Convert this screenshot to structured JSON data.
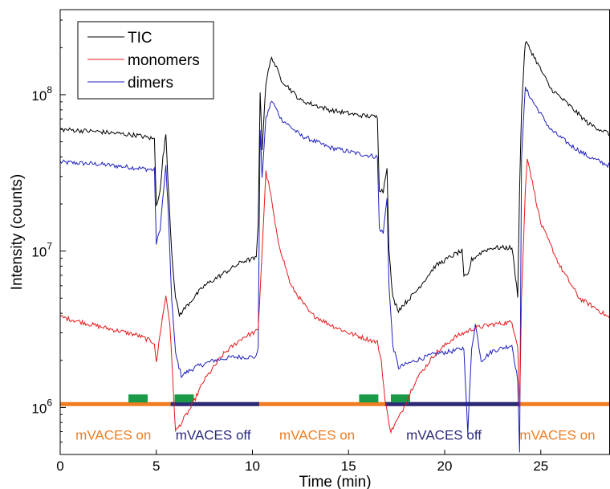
{
  "chart_data": {
    "type": "line",
    "title": "",
    "xlabel": "Time (min)",
    "ylabel": "Intensity (counts)",
    "xlim": [
      0,
      28.6
    ],
    "ylim": [
      500000,
      350000000
    ],
    "yscale": "log",
    "xticks": [
      0,
      5,
      10,
      15,
      20,
      25
    ],
    "xtick_labels": [
      "0",
      "5",
      "10",
      "15",
      "20",
      "25"
    ],
    "yticks": [
      1000000,
      10000000,
      100000000
    ],
    "ytick_labels": [
      {
        "base": "10",
        "exp": "6"
      },
      {
        "base": "10",
        "exp": "7"
      },
      {
        "base": "10",
        "exp": "8"
      }
    ],
    "grid": false,
    "legend_position": "top-left",
    "series": [
      {
        "name": "TIC",
        "color": "#000000",
        "points": [
          [
            0,
            60000000
          ],
          [
            2,
            58000000
          ],
          [
            4,
            55000000
          ],
          [
            4.9,
            52000000
          ],
          [
            5.0,
            20000000
          ],
          [
            5.2,
            24000000
          ],
          [
            5.35,
            40000000
          ],
          [
            5.5,
            56000000
          ],
          [
            5.6,
            30000000
          ],
          [
            5.8,
            10000000
          ],
          [
            6.0,
            5000000
          ],
          [
            6.2,
            3900000
          ],
          [
            6.8,
            4800000
          ],
          [
            7.5,
            6000000
          ],
          [
            8.5,
            7200000
          ],
          [
            9.5,
            8600000
          ],
          [
            10.2,
            9000000
          ],
          [
            10.3,
            15000000
          ],
          [
            10.4,
            105000000
          ],
          [
            10.5,
            45000000
          ],
          [
            10.7,
            120000000
          ],
          [
            11.0,
            175000000
          ],
          [
            11.5,
            125000000
          ],
          [
            12.5,
            92000000
          ],
          [
            14,
            80000000
          ],
          [
            15.5,
            74000000
          ],
          [
            16.5,
            72000000
          ],
          [
            16.6,
            25000000
          ],
          [
            16.8,
            24000000
          ],
          [
            17.0,
            35000000
          ],
          [
            17.1,
            10000000
          ],
          [
            17.3,
            5000000
          ],
          [
            17.6,
            4200000
          ],
          [
            18.5,
            5500000
          ],
          [
            19.5,
            8000000
          ],
          [
            20.5,
            9500000
          ],
          [
            20.9,
            10000000
          ],
          [
            21.0,
            6800000
          ],
          [
            21.2,
            7000000
          ],
          [
            21.4,
            8800000
          ],
          [
            22,
            10000000
          ],
          [
            22.5,
            10500000
          ],
          [
            23.5,
            10500000
          ],
          [
            23.8,
            5200000
          ],
          [
            23.9,
            25000000
          ],
          [
            24.0,
            80000000
          ],
          [
            24.1,
            140000000
          ],
          [
            24.2,
            220000000
          ],
          [
            24.6,
            180000000
          ],
          [
            25.5,
            110000000
          ],
          [
            26.5,
            85000000
          ],
          [
            27.5,
            65000000
          ],
          [
            28.6,
            56000000
          ]
        ]
      },
      {
        "name": "monomers",
        "color": "#e41a1c",
        "points": [
          [
            0,
            3800000
          ],
          [
            2,
            3300000
          ],
          [
            4,
            2900000
          ],
          [
            4.9,
            2600000
          ],
          [
            5.0,
            1900000
          ],
          [
            5.2,
            3000000
          ],
          [
            5.5,
            5200000
          ],
          [
            5.7,
            3500000
          ],
          [
            5.9,
            1200000
          ],
          [
            6.0,
            700000
          ],
          [
            6.2,
            760000
          ],
          [
            6.8,
            1000000
          ],
          [
            7.5,
            1500000
          ],
          [
            8.5,
            2200000
          ],
          [
            9.5,
            2800000
          ],
          [
            10.3,
            3100000
          ],
          [
            10.5,
            10000000
          ],
          [
            10.7,
            32000000
          ],
          [
            10.9,
            25000000
          ],
          [
            11.3,
            12000000
          ],
          [
            12,
            6000000
          ],
          [
            13,
            4000000
          ],
          [
            14,
            3400000
          ],
          [
            15,
            3000000
          ],
          [
            16.5,
            2600000
          ],
          [
            16.7,
            2000000
          ],
          [
            16.9,
            1100000
          ],
          [
            17.2,
            700000
          ],
          [
            17.7,
            900000
          ],
          [
            18.5,
            1500000
          ],
          [
            19.5,
            2200000
          ],
          [
            20.5,
            2800000
          ],
          [
            21.5,
            3200000
          ],
          [
            22.5,
            3400000
          ],
          [
            23.5,
            3500000
          ],
          [
            23.8,
            2500000
          ],
          [
            23.9,
            1000000
          ],
          [
            24.0,
            5000000
          ],
          [
            24.2,
            25000000
          ],
          [
            24.3,
            40000000
          ],
          [
            24.5,
            30000000
          ],
          [
            25,
            15000000
          ],
          [
            26,
            8000000
          ],
          [
            27,
            5000000
          ],
          [
            28,
            4200000
          ],
          [
            28.6,
            3700000
          ]
        ]
      },
      {
        "name": "dimers",
        "color": "#1f1fbf",
        "points": [
          [
            0,
            37000000
          ],
          [
            2,
            36000000
          ],
          [
            4,
            34000000
          ],
          [
            4.9,
            33000000
          ],
          [
            5.0,
            11000000
          ],
          [
            5.2,
            14000000
          ],
          [
            5.4,
            26000000
          ],
          [
            5.5,
            35000000
          ],
          [
            5.6,
            20000000
          ],
          [
            5.8,
            5000000
          ],
          [
            6.0,
            2200000
          ],
          [
            6.3,
            1600000
          ],
          [
            7,
            1800000
          ],
          [
            8,
            2000000
          ],
          [
            9,
            2100000
          ],
          [
            10.2,
            2100000
          ],
          [
            10.3,
            2500000
          ],
          [
            10.4,
            60000000
          ],
          [
            10.5,
            30000000
          ],
          [
            10.7,
            70000000
          ],
          [
            11.0,
            92000000
          ],
          [
            11.5,
            70000000
          ],
          [
            12.5,
            55000000
          ],
          [
            14,
            46000000
          ],
          [
            15.5,
            42000000
          ],
          [
            16.5,
            40000000
          ],
          [
            16.6,
            14000000
          ],
          [
            16.8,
            13000000
          ],
          [
            17.0,
            22000000
          ],
          [
            17.1,
            6000000
          ],
          [
            17.3,
            2500000
          ],
          [
            17.6,
            1800000
          ],
          [
            18.5,
            2000000
          ],
          [
            19.5,
            2200000
          ],
          [
            20.5,
            2300000
          ],
          [
            21.0,
            2400000
          ],
          [
            21.2,
            680000
          ],
          [
            21.4,
            2400000
          ],
          [
            21.6,
            3400000
          ],
          [
            21.9,
            2000000
          ],
          [
            22.5,
            2300000
          ],
          [
            23.5,
            2500000
          ],
          [
            23.8,
            1500000
          ],
          [
            23.9,
            500000
          ],
          [
            24.0,
            40000000
          ],
          [
            24.1,
            70000000
          ],
          [
            24.2,
            110000000
          ],
          [
            24.6,
            90000000
          ],
          [
            25.5,
            60000000
          ],
          [
            26.5,
            48000000
          ],
          [
            27.5,
            40000000
          ],
          [
            28.6,
            35000000
          ]
        ]
      }
    ],
    "baseline": {
      "y": 1050000,
      "on_color": "#f07d22",
      "off_color": "#2a2a7a",
      "off_segments": [
        [
          5.75,
          10.35
        ],
        [
          16.9,
          23.9
        ]
      ]
    },
    "markers": {
      "color": "#1a9a48",
      "segments": [
        [
          3.55,
          4.55
        ],
        [
          5.95,
          6.95
        ],
        [
          15.55,
          16.55
        ],
        [
          17.2,
          18.2
        ]
      ]
    },
    "annotations": [
      {
        "text": "mVACES on",
        "x": 0.8,
        "color": "#f07d22"
      },
      {
        "text": "mVACES off",
        "x": 6.0,
        "color": "#2a2a7a"
      },
      {
        "text": "mVACES on",
        "x": 11.4,
        "color": "#f07d22"
      },
      {
        "text": "mVACES off",
        "x": 18.0,
        "color": "#2a2a7a"
      },
      {
        "text": "mVACES on",
        "x": 23.9,
        "color": "#f07d22"
      }
    ]
  }
}
